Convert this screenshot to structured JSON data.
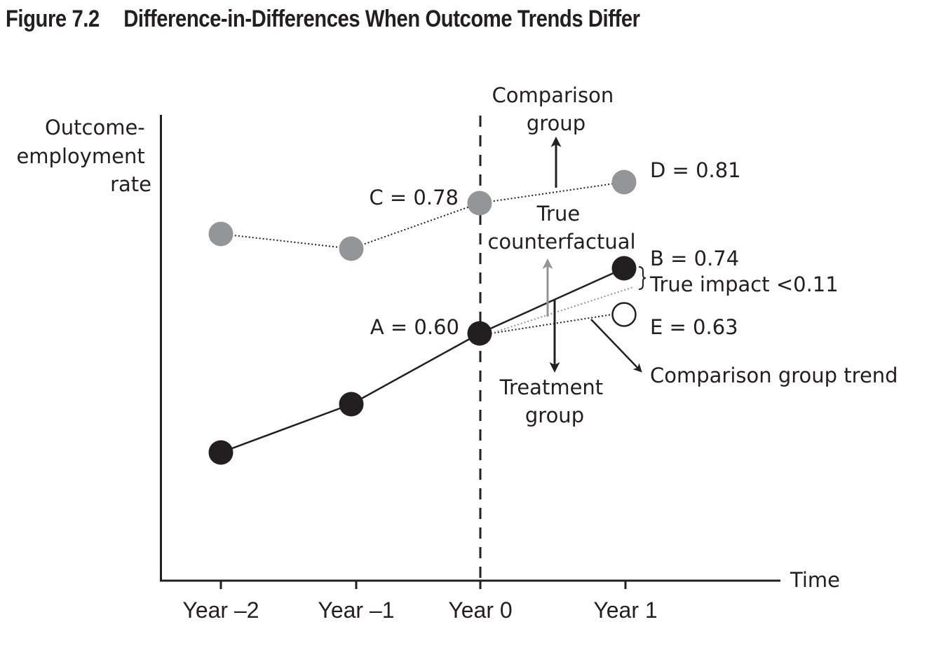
{
  "figure": {
    "number": "Figure 7.2",
    "title": "Difference-in-Differences When Outcome Trends Differ"
  },
  "chart_data": {
    "type": "line",
    "title": "Difference-in-Differences When Outcome Trends Differ",
    "ylabel_lines": [
      "Outcome-",
      "employment",
      "rate"
    ],
    "xlabel": "Time",
    "categories": [
      "Year –2",
      "Year –1",
      "Year 0",
      "Year 1"
    ],
    "grid": false,
    "series": [
      {
        "name": "Comparison group",
        "style": "dotted",
        "color": "#939598",
        "points": [
          {
            "x": "Year –2",
            "value": null,
            "label": ""
          },
          {
            "x": "Year –1",
            "value": null,
            "label": ""
          },
          {
            "x": "Year 0",
            "value": 0.78,
            "label": "C = 0.78"
          },
          {
            "x": "Year 1",
            "value": 0.81,
            "label": "D = 0.81"
          }
        ]
      },
      {
        "name": "Treatment group",
        "style": "solid",
        "color": "#231f20",
        "points": [
          {
            "x": "Year –2",
            "value": null,
            "label": ""
          },
          {
            "x": "Year –1",
            "value": null,
            "label": ""
          },
          {
            "x": "Year 0",
            "value": 0.6,
            "label": "A = 0.60"
          },
          {
            "x": "Year 1",
            "value": 0.74,
            "label": "B = 0.74"
          }
        ]
      },
      {
        "name": "Comparison group trend",
        "style": "dotted",
        "color": "#231f20",
        "points": [
          {
            "x": "Year 0",
            "value": 0.6,
            "label": ""
          },
          {
            "x": "Year 1",
            "value": 0.63,
            "label": "E = 0.63"
          }
        ]
      },
      {
        "name": "True counterfactual",
        "style": "dotted",
        "color": "#939598",
        "points": [
          {
            "x": "Year 0",
            "value": 0.6,
            "label": ""
          },
          {
            "x": "Year 1",
            "value": null,
            "label": ""
          }
        ]
      }
    ],
    "annotations": {
      "comparison_group": [
        "Comparison",
        "group"
      ],
      "true_counterfactual": [
        "True",
        "counterfactual"
      ],
      "treatment_group": [
        "Treatment",
        "group"
      ],
      "comparison_group_trend": "Comparison group trend",
      "true_impact": "True impact <0.11"
    },
    "vertical_marker": "Year 0",
    "colors": {
      "dark": "#231f20",
      "gray": "#939598"
    }
  }
}
